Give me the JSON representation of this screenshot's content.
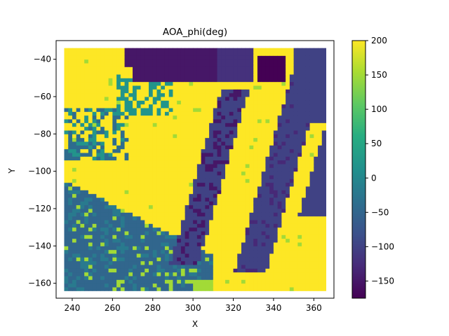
{
  "chart_data": {
    "type": "heatmap",
    "title": "AOA_phi(deg)",
    "xlabel": "X",
    "ylabel": "Y",
    "xlim": [
      232,
      370
    ],
    "ylim": [
      -168,
      -30
    ],
    "xticks": [
      240,
      260,
      280,
      300,
      320,
      340,
      360
    ],
    "yticks": [
      -40,
      -60,
      -80,
      -100,
      -120,
      -140,
      -160
    ],
    "grid": false,
    "colormap": "viridis",
    "colorbar": {
      "vmin": -175,
      "vmax": 200,
      "ticks": [
        200,
        150,
        100,
        50,
        0,
        -50,
        -100,
        -150
      ]
    },
    "grid_spec": {
      "x_range": [
        237,
        365
      ],
      "y_range": [
        -163,
        -35
      ],
      "dx": 2,
      "dy": 2
    },
    "regions": [
      {
        "description": "background",
        "value": 200
      },
      {
        "description": "lower-left wedge",
        "value": -40
      },
      {
        "description": "left diagonal stripe",
        "value": -100
      },
      {
        "description": "middle diagonal stripe",
        "value": -100
      },
      {
        "description": "right diagonal stripe",
        "value": -100
      },
      {
        "description": "top band",
        "value": -150
      },
      {
        "description": "top-right dark patch",
        "value": -175
      },
      {
        "description": "upper-left teal patch",
        "value": 20
      },
      {
        "description": "green-yellow speckle",
        "value": 150
      }
    ]
  }
}
